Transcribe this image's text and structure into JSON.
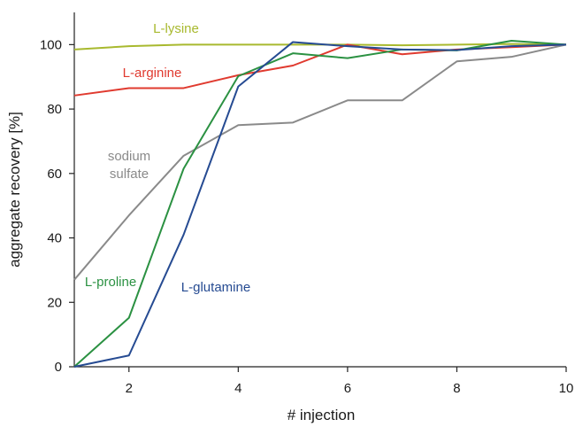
{
  "chart_data": {
    "type": "line",
    "title": "",
    "xlabel": "# injection",
    "ylabel": "aggregate recovery [%]",
    "xlim": [
      1,
      10
    ],
    "ylim": [
      0,
      110
    ],
    "xticks": [
      2,
      4,
      6,
      8,
      10
    ],
    "yticks": [
      0,
      20,
      40,
      60,
      80,
      100
    ],
    "grid": false,
    "legend": "inline labels",
    "x": [
      1,
      2,
      3,
      4,
      5,
      6,
      7,
      8,
      9,
      10
    ],
    "series": [
      {
        "name": "L-lysine",
        "label_lines": [
          "L-lysine"
        ],
        "color": "#a8b92e",
        "values": [
          98.5,
          99.5,
          100,
          100,
          100,
          100,
          99.8,
          100,
          100.2,
          100
        ]
      },
      {
        "name": "L-arginine",
        "label_lines": [
          "L-arginine"
        ],
        "color": "#e03a2f",
        "values": [
          84.2,
          86.5,
          86.5,
          90.5,
          93.5,
          100,
          97,
          98.5,
          99.2,
          100
        ]
      },
      {
        "name": "sodium sulfate",
        "label_lines": [
          "sodium",
          "sulfate"
        ],
        "color": "#8a8a8a",
        "values": [
          27,
          47,
          65.5,
          75,
          75.8,
          82.7,
          82.7,
          94.8,
          96.2,
          100
        ]
      },
      {
        "name": "L-proline",
        "label_lines": [
          "L-proline"
        ],
        "color": "#2b9142",
        "values": [
          0,
          15.2,
          61.5,
          90.2,
          97.3,
          95.8,
          98.5,
          98.2,
          101.2,
          100
        ]
      },
      {
        "name": "L-glutamine",
        "label_lines": [
          "L-glutamine"
        ],
        "color": "#264b92",
        "values": [
          0,
          3.5,
          41,
          87,
          100.8,
          99.5,
          98.5,
          98.3,
          99.5,
          100
        ]
      }
    ]
  }
}
